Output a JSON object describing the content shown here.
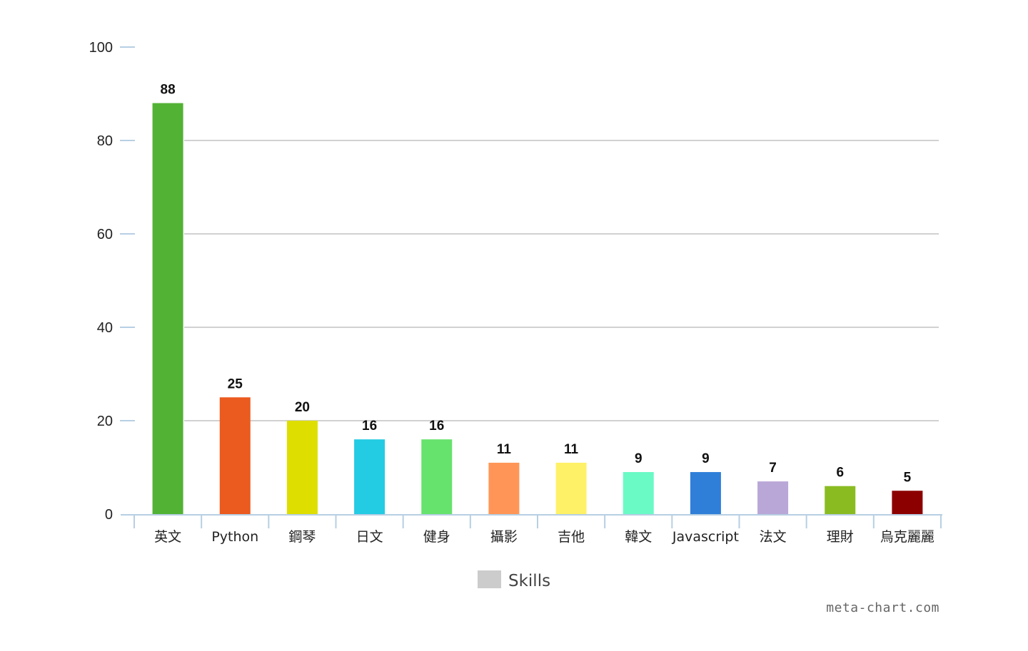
{
  "chart_data": {
    "type": "bar",
    "categories": [
      "英文",
      "Python",
      "鋼琴",
      "日文",
      "健身",
      "攝影",
      "吉他",
      "韓文",
      "Javascript",
      "法文",
      "理財",
      "烏克麗麗"
    ],
    "series": [
      {
        "name": "Skills",
        "values": [
          88,
          25,
          20,
          16,
          16,
          11,
          11,
          9,
          9,
          7,
          6,
          5
        ],
        "colors": [
          "#52b234",
          "#eb5a1e",
          "#dede00",
          "#23cbe3",
          "#66e36c",
          "#ff9657",
          "#fff167",
          "#6afac6",
          "#2f7fd8",
          "#b9a7d8",
          "#8abc22",
          "#8c0000"
        ]
      }
    ],
    "ylim": [
      0,
      100
    ],
    "yticks": [
      0,
      20,
      40,
      60,
      80,
      100
    ],
    "grid": true,
    "data_labels": true,
    "legend": {
      "position": "bottom-center",
      "color": "#cccccc"
    }
  },
  "watermark": "meta-chart.com"
}
